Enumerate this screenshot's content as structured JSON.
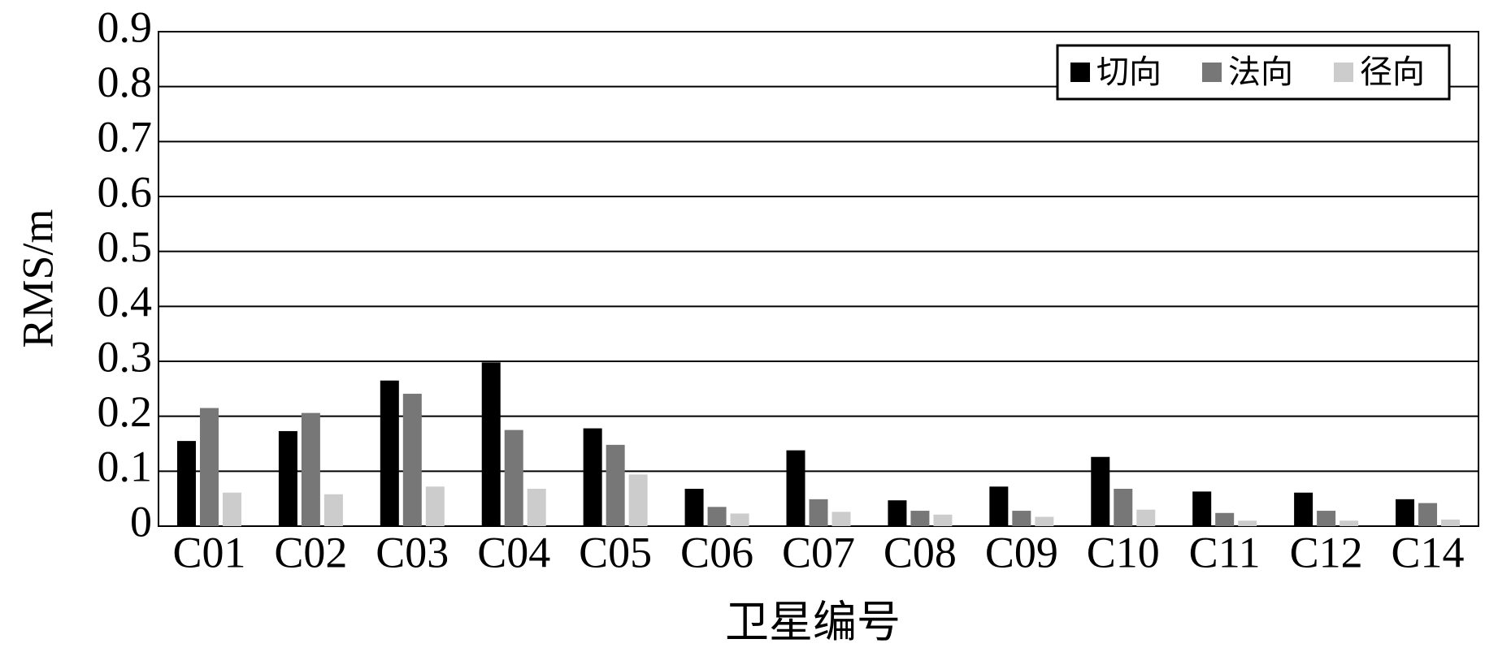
{
  "chart_data": {
    "type": "bar",
    "x_label": "卫星编号",
    "y_label": "RMS/m",
    "categories": [
      "C01",
      "C02",
      "C03",
      "C04",
      "C05",
      "C06",
      "C07",
      "C08",
      "C09",
      "C10",
      "C11",
      "C12",
      "C14"
    ],
    "series": [
      {
        "name": "切向",
        "color": "#000000",
        "values": [
          0.155,
          0.173,
          0.265,
          0.298,
          0.178,
          0.068,
          0.138,
          0.047,
          0.072,
          0.126,
          0.063,
          0.061,
          0.049
        ]
      },
      {
        "name": "法向",
        "color": "#777777",
        "values": [
          0.215,
          0.206,
          0.241,
          0.175,
          0.148,
          0.035,
          0.049,
          0.028,
          0.028,
          0.068,
          0.024,
          0.028,
          0.042
        ]
      },
      {
        "name": "径向",
        "color": "#cccccc",
        "values": [
          0.061,
          0.058,
          0.072,
          0.068,
          0.094,
          0.023,
          0.026,
          0.021,
          0.017,
          0.03,
          0.01,
          0.01,
          0.012
        ]
      }
    ],
    "ylim": [
      0,
      0.9
    ],
    "yticks": [
      0,
      0.1,
      0.2,
      0.3,
      0.4,
      0.5,
      0.6,
      0.7,
      0.8,
      0.9
    ],
    "grid": true,
    "legend": "upper right"
  }
}
